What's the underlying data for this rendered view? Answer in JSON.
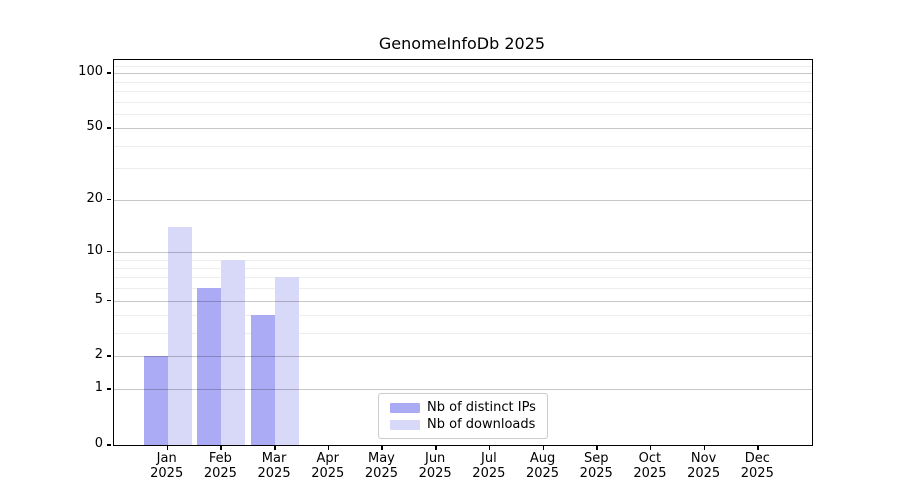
{
  "chart_data": {
    "type": "bar",
    "title": "GenomeInfoDb 2025",
    "x_tick_year": "2025",
    "categories": [
      "Jan",
      "Feb",
      "Mar",
      "Apr",
      "May",
      "Jun",
      "Jul",
      "Aug",
      "Sep",
      "Oct",
      "Nov",
      "Dec"
    ],
    "series": [
      {
        "name": "Nb of distinct IPs",
        "color": "#aaaaf5",
        "values": [
          2,
          6,
          4,
          0,
          0,
          0,
          0,
          0,
          0,
          0,
          0,
          0
        ]
      },
      {
        "name": "Nb of downloads",
        "color": "#d8d8f8",
        "values": [
          14,
          9,
          7,
          0,
          0,
          0,
          0,
          0,
          0,
          0,
          0,
          0
        ]
      }
    ],
    "y_axis": {
      "scale": "log1p",
      "ticks": [
        0,
        1,
        2,
        5,
        10,
        20,
        50,
        100
      ],
      "minor_ticks": [
        3,
        4,
        6,
        7,
        8,
        9,
        30,
        40,
        60,
        70,
        80,
        90,
        110
      ],
      "max_value": 118
    },
    "grid": {
      "major_color": "#c9c9c9",
      "minor_color": "#ededed"
    },
    "legend": {
      "position": "bottom-center"
    },
    "frame_color": "#000000",
    "background": "#ffffff"
  }
}
